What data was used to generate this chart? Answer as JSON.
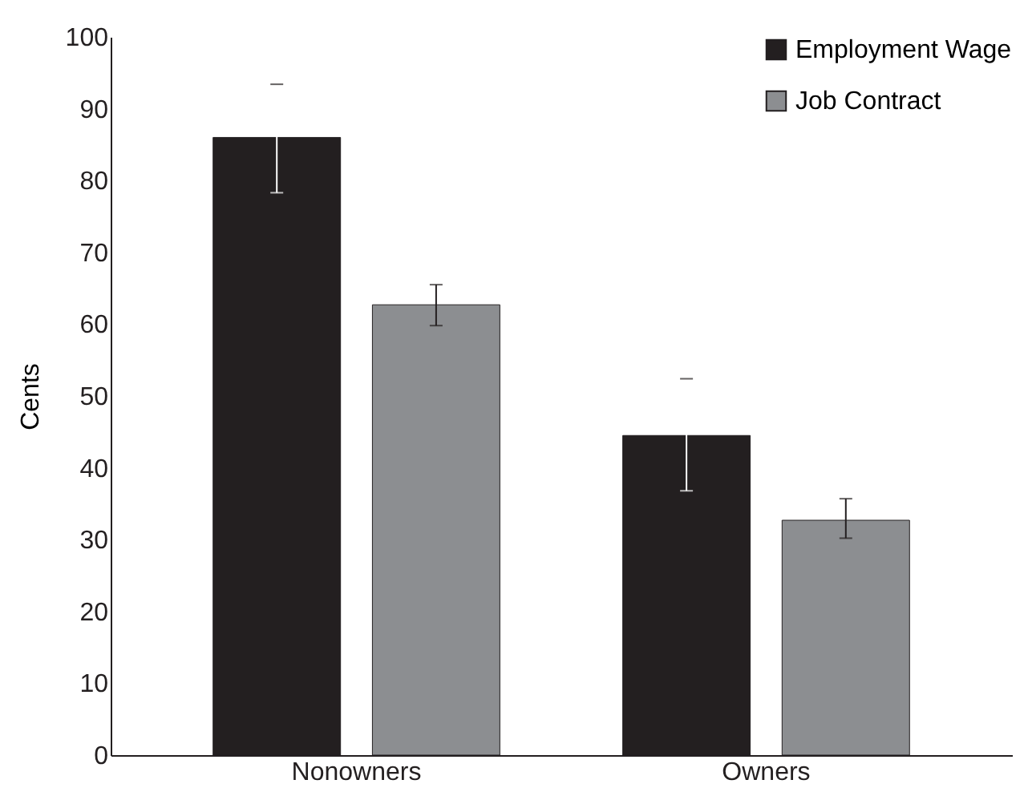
{
  "chart_data": {
    "type": "bar",
    "ylabel": "Cents",
    "categories": [
      "Nonowners",
      "Owners"
    ],
    "series": [
      {
        "name": "Employment Wage",
        "color": "#231f20",
        "values": [
          86,
          44.5
        ],
        "errors": [
          [
            78.3,
            93.4
          ],
          [
            36.8,
            52.4
          ]
        ]
      },
      {
        "name": "Job Contract",
        "color": "#8c8e91",
        "values": [
          62.7,
          32.7
        ],
        "errors": [
          [
            59.8,
            65.5
          ],
          [
            30.2,
            35.7
          ]
        ]
      }
    ],
    "ylim": [
      0,
      100
    ],
    "yticks": [
      0,
      10,
      20,
      30,
      40,
      50,
      60,
      70,
      80,
      90,
      100
    ],
    "grid": false,
    "legend": "top right"
  }
}
